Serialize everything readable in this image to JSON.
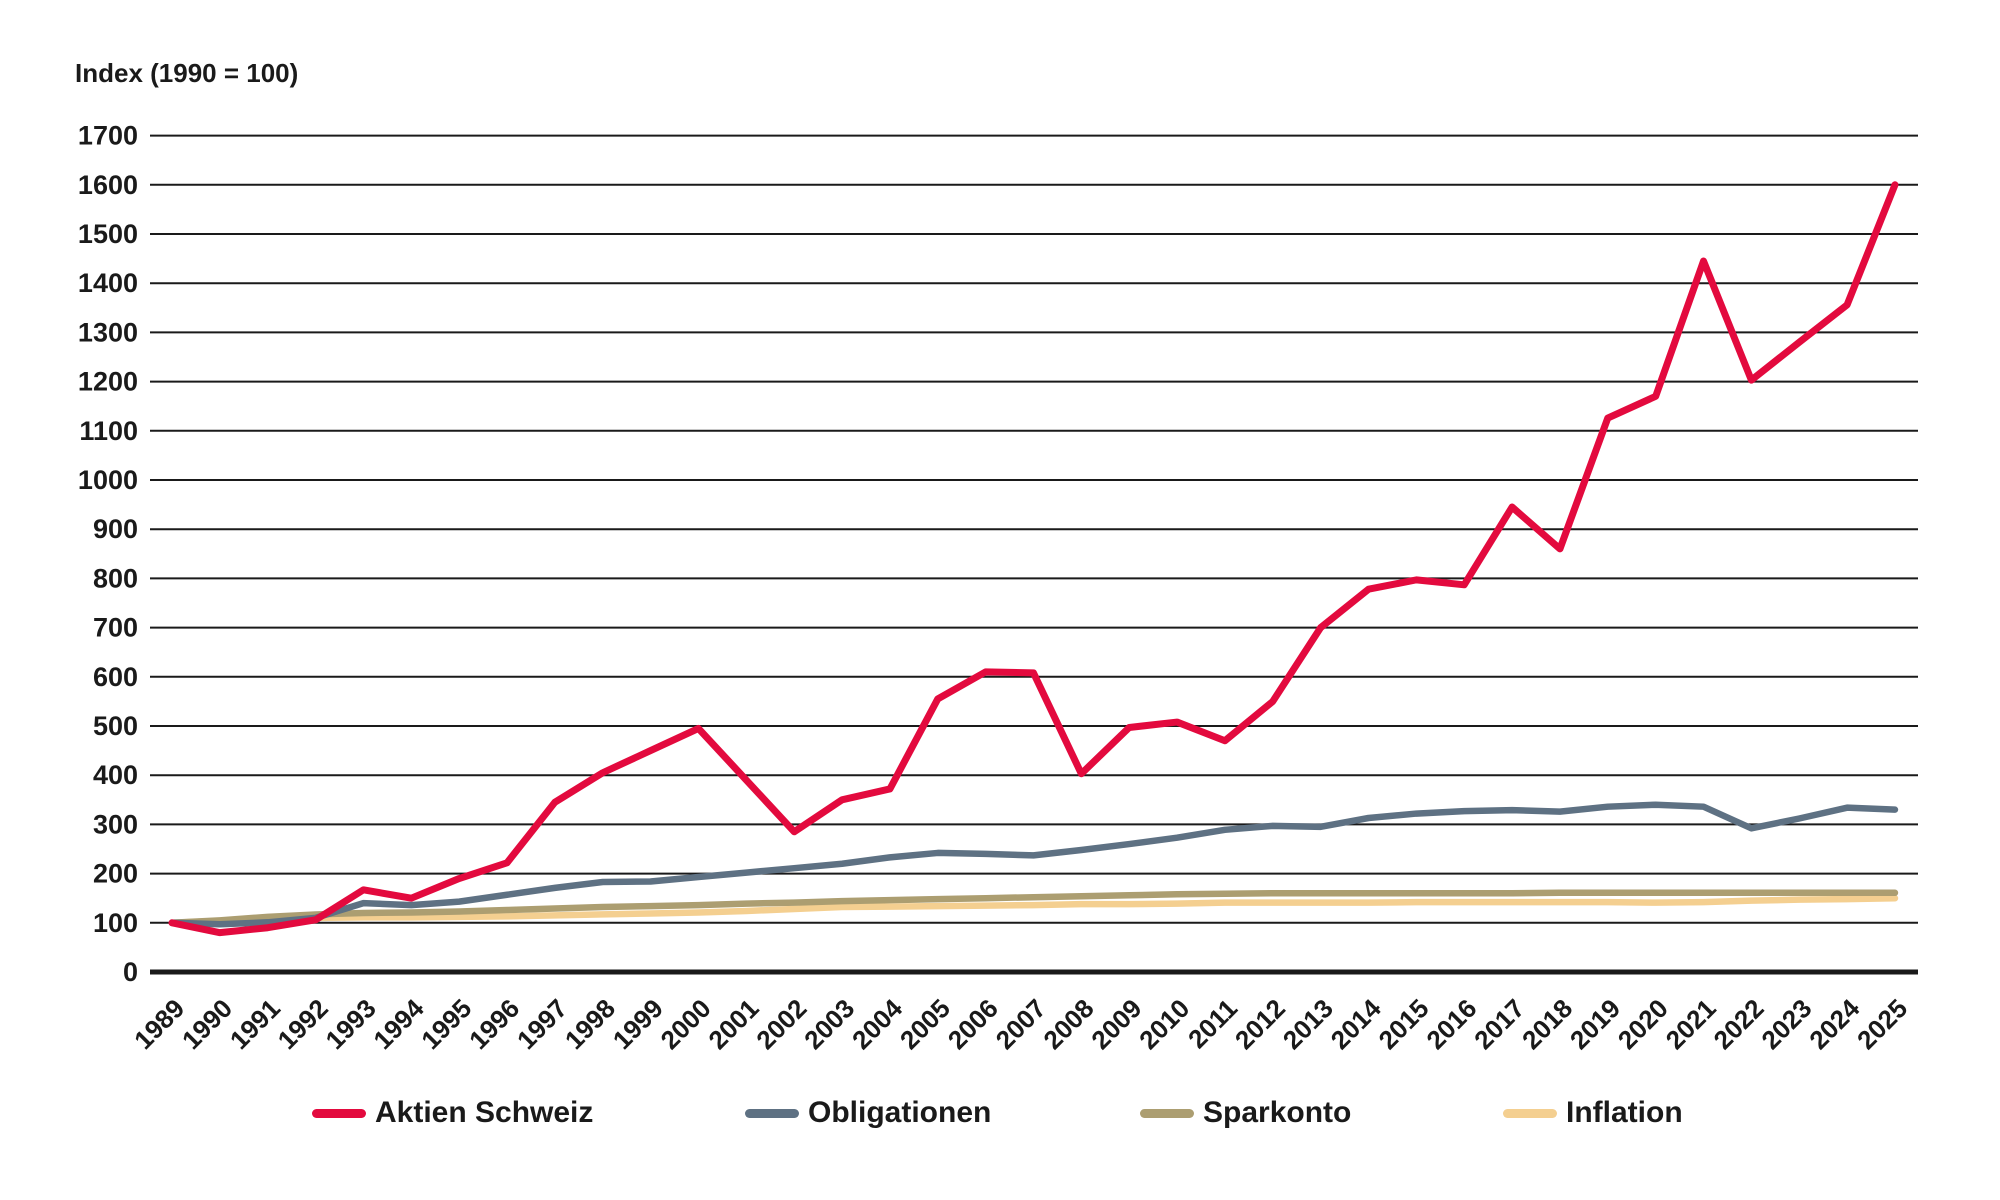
{
  "title": "Index (1990 = 100)",
  "chart_data": {
    "type": "line",
    "title": "Index (1990 = 100)",
    "xlabel": "",
    "ylabel": "Index (1990 = 100)",
    "ylim": [
      0,
      1700
    ],
    "ytick_step": 100,
    "grid": "horizontal",
    "legend_position": "bottom",
    "yticks": [
      "0",
      "100",
      "200",
      "300",
      "400",
      "500",
      "600",
      "700",
      "800",
      "900",
      "1000",
      "1100",
      "1200",
      "1300",
      "1400",
      "1500",
      "1600",
      "1700"
    ],
    "x": [
      "1989",
      "1990",
      "1991",
      "1992",
      "1993",
      "1994",
      "1995",
      "1996",
      "1997",
      "1998",
      "1999",
      "2000",
      "2001",
      "2002",
      "2003",
      "2004",
      "2005",
      "2006",
      "2007",
      "2008",
      "2009",
      "2010",
      "2011",
      "2012",
      "2013",
      "2014",
      "2015",
      "2016",
      "2017",
      "2018",
      "2019",
      "2020",
      "2021",
      "2022",
      "2023",
      "2024",
      "2025"
    ],
    "series": [
      {
        "name": "Aktien Schweiz",
        "color": "#E30A3E",
        "values": [
          100,
          80,
          90,
          106,
          167,
          150,
          190,
          222,
          345,
          405,
          450,
          495,
          390,
          285,
          350,
          372,
          555,
          610,
          608,
          403,
          497,
          508,
          470,
          550,
          700,
          778,
          797,
          787,
          945,
          860,
          1126,
          1170,
          1445,
          1203,
          1280,
          1356,
          1600
        ]
      },
      {
        "name": "Obligationen",
        "color": "#5E7183",
        "values": [
          100,
          97,
          101,
          110,
          140,
          136,
          143,
          157,
          171,
          183,
          184,
          193,
          202,
          211,
          220,
          233,
          242,
          240,
          237,
          248,
          260,
          273,
          289,
          297,
          295,
          313,
          322,
          327,
          329,
          326,
          336,
          340,
          336,
          292,
          312,
          334,
          330
        ]
      },
      {
        "name": "Sparkonto",
        "color": "#AC9E71",
        "values": [
          100,
          105,
          112,
          117,
          120,
          121,
          123,
          126,
          129,
          132,
          134,
          136,
          139,
          141,
          144,
          146,
          148,
          150,
          152,
          154,
          156,
          158,
          159,
          160,
          160,
          160,
          160,
          160,
          160,
          161,
          161,
          161,
          161,
          161,
          161,
          161,
          161
        ]
      },
      {
        "name": "Inflation",
        "color": "#F4CF90",
        "values": [
          100,
          104,
          108,
          110,
          111,
          111,
          112,
          113,
          115,
          117,
          119,
          121,
          124,
          128,
          132,
          133,
          134,
          135,
          136,
          138,
          138,
          139,
          141,
          141,
          141,
          141,
          142,
          142,
          142,
          142,
          142,
          141,
          142,
          145,
          147,
          148,
          150
        ]
      }
    ]
  },
  "legend": {
    "items": [
      "Aktien Schweiz",
      "Obligationen",
      "Sparkonto",
      "Inflation"
    ]
  }
}
